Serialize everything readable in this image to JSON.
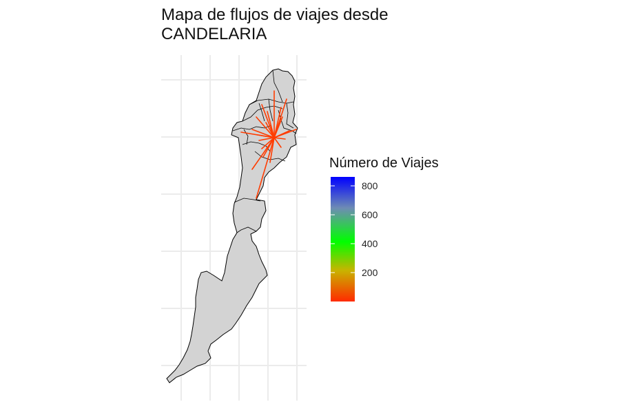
{
  "title": {
    "line1": "Mapa de flujos de viajes desde",
    "line2": "CANDELARIA"
  },
  "legend": {
    "title": "Número de Viajes",
    "ticks": [
      "800",
      "600",
      "400",
      "200"
    ],
    "colors": {
      "low": "#ff2a00",
      "mid_low": "#c8b400",
      "mid": "#00ff00",
      "mid_high": "#6e8cb4",
      "high": "#0000ff"
    },
    "range": [
      0,
      880
    ]
  },
  "map": {
    "fill_color": "#d3d3d3",
    "border_color": "#000000",
    "grid_color": "#ebebeb",
    "flow_color": "#ff3c00",
    "flow_count": 22
  }
}
